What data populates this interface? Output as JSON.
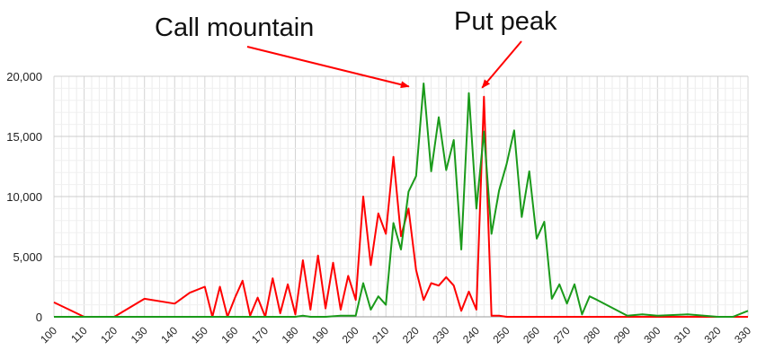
{
  "chart_data": {
    "type": "line",
    "title": "",
    "xlabel": "",
    "ylabel": "",
    "xlim": [
      100,
      330
    ],
    "ylim": [
      0,
      20000
    ],
    "grid": true,
    "legend": "none",
    "x_ticks": [
      100,
      110,
      120,
      130,
      140,
      150,
      160,
      170,
      180,
      190,
      200,
      210,
      220,
      230,
      240,
      250,
      260,
      270,
      280,
      290,
      300,
      310,
      320,
      330
    ],
    "y_ticks": [
      0,
      5000,
      10000,
      15000,
      20000
    ],
    "y_tick_labels": [
      "0",
      "5,000",
      "10,000",
      "15,000",
      "20,000"
    ],
    "annotations": [
      {
        "text": "Call mountain",
        "x": 220,
        "y": 19300,
        "arrow_color": "#ff0000"
      },
      {
        "text": "Put peak",
        "x": 241,
        "y": 18300,
        "arrow_color": "#ff0000"
      }
    ],
    "series": [
      {
        "color": "#ff0000",
        "points": [
          [
            100,
            1200
          ],
          [
            110,
            0
          ],
          [
            120,
            0
          ],
          [
            130,
            1500
          ],
          [
            140,
            1100
          ],
          [
            145,
            2000
          ],
          [
            150,
            2500
          ],
          [
            152.5,
            0
          ],
          [
            155,
            2500
          ],
          [
            157.5,
            0
          ],
          [
            160,
            1600
          ],
          [
            162.5,
            3000
          ],
          [
            165,
            100
          ],
          [
            167.5,
            1600
          ],
          [
            170,
            0
          ],
          [
            172.5,
            3200
          ],
          [
            175,
            300
          ],
          [
            177.5,
            2700
          ],
          [
            180,
            200
          ],
          [
            182.5,
            4700
          ],
          [
            185,
            600
          ],
          [
            187.5,
            5100
          ],
          [
            190,
            700
          ],
          [
            192.5,
            4500
          ],
          [
            195,
            600
          ],
          [
            197.5,
            3400
          ],
          [
            200,
            1400
          ],
          [
            202.5,
            10000
          ],
          [
            205,
            4300
          ],
          [
            207.5,
            8600
          ],
          [
            210,
            6900
          ],
          [
            212.5,
            13300
          ],
          [
            215,
            6700
          ],
          [
            217.5,
            9000
          ],
          [
            220,
            3900
          ],
          [
            222.5,
            1400
          ],
          [
            225,
            2800
          ],
          [
            227.5,
            2600
          ],
          [
            230,
            3300
          ],
          [
            232.5,
            2600
          ],
          [
            235,
            500
          ],
          [
            237.5,
            2100
          ],
          [
            240,
            600
          ],
          [
            242.5,
            18300
          ],
          [
            245,
            100
          ],
          [
            247.5,
            100
          ],
          [
            250,
            0
          ],
          [
            260,
            0
          ],
          [
            270,
            0
          ],
          [
            280,
            0
          ],
          [
            290,
            0
          ],
          [
            300,
            0
          ],
          [
            310,
            0
          ],
          [
            320,
            0
          ],
          [
            330,
            0
          ]
        ]
      },
      {
        "color": "#1a9a1a",
        "points": [
          [
            100,
            0
          ],
          [
            140,
            0
          ],
          [
            150,
            0
          ],
          [
            160,
            0
          ],
          [
            170,
            0
          ],
          [
            180,
            0
          ],
          [
            182.5,
            100
          ],
          [
            185,
            0
          ],
          [
            190,
            0
          ],
          [
            195,
            100
          ],
          [
            200,
            100
          ],
          [
            202.5,
            2800
          ],
          [
            205,
            600
          ],
          [
            207.5,
            1700
          ],
          [
            210,
            1000
          ],
          [
            212.5,
            7800
          ],
          [
            215,
            5600
          ],
          [
            217.5,
            10400
          ],
          [
            220,
            11700
          ],
          [
            222.5,
            19400
          ],
          [
            225,
            12100
          ],
          [
            227.5,
            16600
          ],
          [
            230,
            12200
          ],
          [
            232.5,
            14700
          ],
          [
            235,
            5600
          ],
          [
            237.5,
            18600
          ],
          [
            240,
            9000
          ],
          [
            242.5,
            15400
          ],
          [
            245,
            6900
          ],
          [
            247.5,
            10500
          ],
          [
            250,
            12700
          ],
          [
            252.5,
            15500
          ],
          [
            255,
            8300
          ],
          [
            257.5,
            12100
          ],
          [
            260,
            6500
          ],
          [
            262.5,
            7900
          ],
          [
            265,
            1500
          ],
          [
            267.5,
            2700
          ],
          [
            270,
            1100
          ],
          [
            272.5,
            2700
          ],
          [
            275,
            200
          ],
          [
            277.5,
            1700
          ],
          [
            280,
            1400
          ],
          [
            290,
            100
          ],
          [
            295,
            200
          ],
          [
            300,
            100
          ],
          [
            310,
            200
          ],
          [
            320,
            0
          ],
          [
            325,
            0
          ],
          [
            330,
            500
          ]
        ]
      }
    ]
  }
}
